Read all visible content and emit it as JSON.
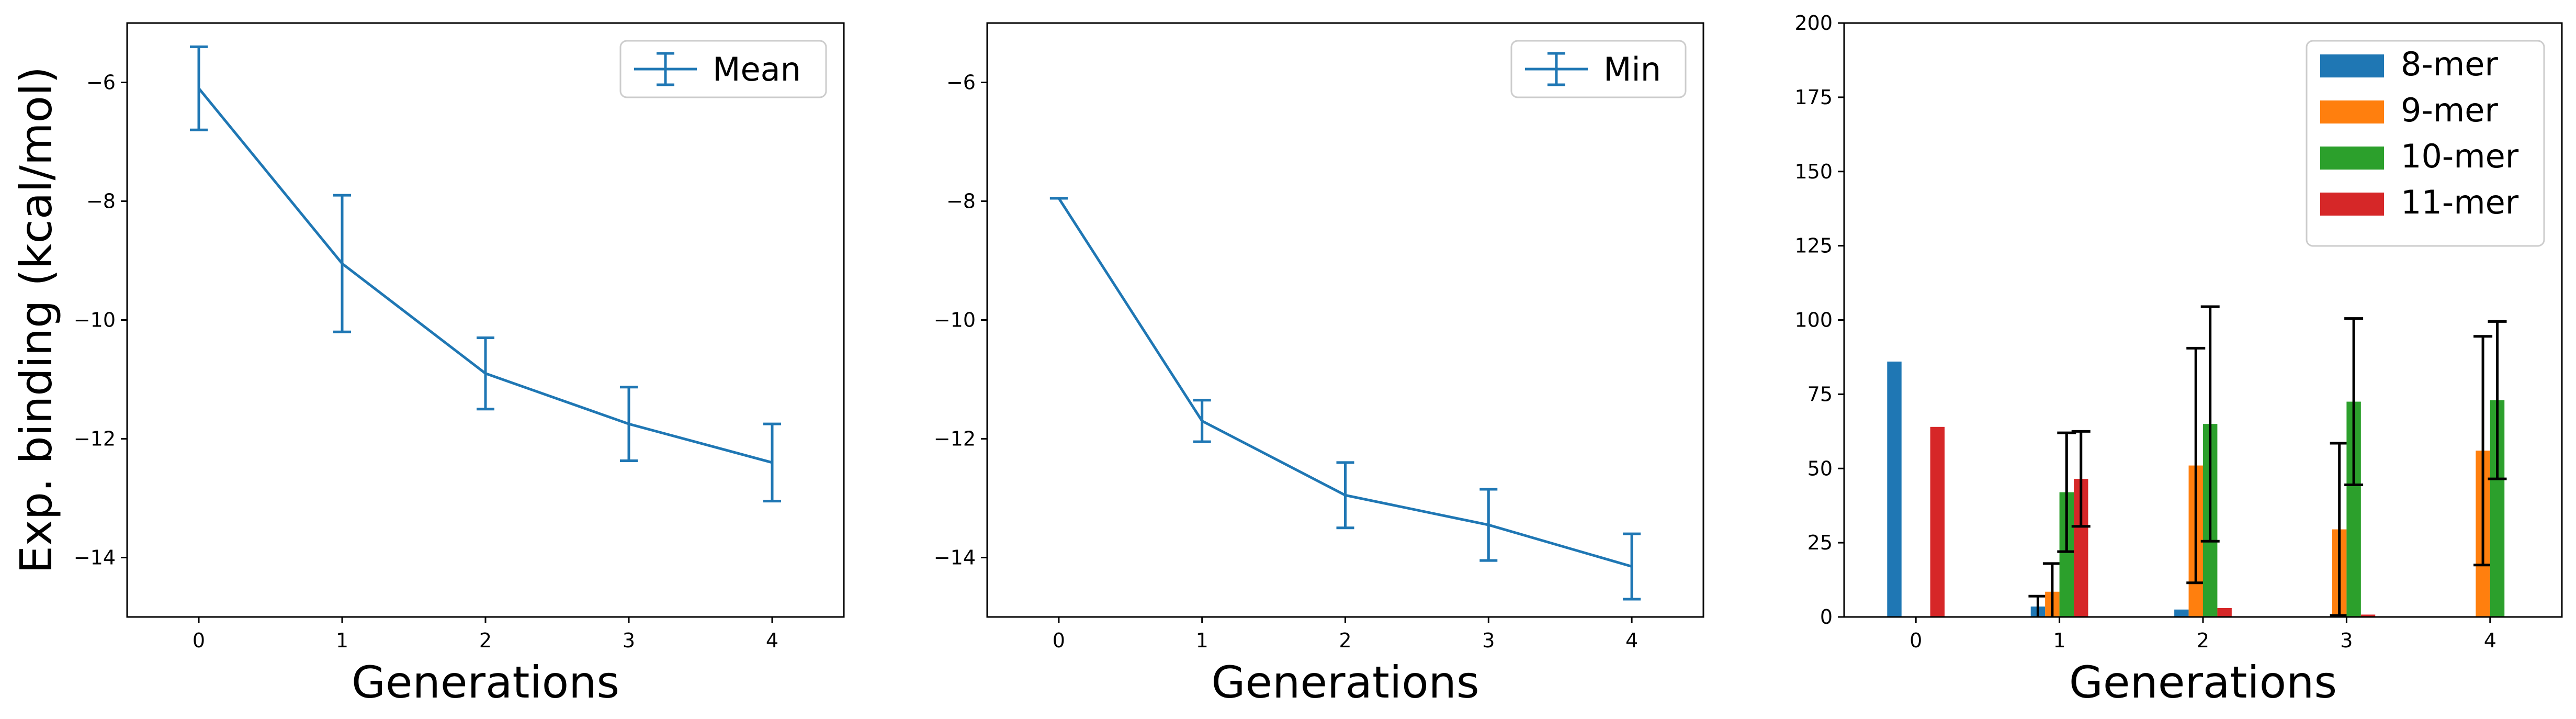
{
  "chart_data": [
    {
      "type": "line",
      "xlabel": "Generations",
      "ylabel": "Exp. binding (kcal/mol)",
      "xlim": [
        -0.5,
        4.5
      ],
      "ylim": [
        -15,
        -5
      ],
      "xticks": [
        0,
        1,
        2,
        3,
        4
      ],
      "yticks": [
        -14,
        -12,
        -10,
        -8,
        -6
      ],
      "legend": "upper-right",
      "series": [
        {
          "name": "Mean",
          "color": "#1f77b4",
          "x": [
            0,
            1,
            2,
            3,
            4
          ],
          "y": [
            -6.1,
            -9.05,
            -10.9,
            -11.75,
            -12.4
          ],
          "err": [
            0.7,
            1.15,
            0.6,
            0.62,
            0.65
          ]
        }
      ]
    },
    {
      "type": "line",
      "xlabel": "Generations",
      "ylabel": "",
      "xlim": [
        -0.5,
        4.5
      ],
      "ylim": [
        -15,
        -5
      ],
      "xticks": [
        0,
        1,
        2,
        3,
        4
      ],
      "yticks": [
        -14,
        -12,
        -10,
        -8,
        -6
      ],
      "legend": "upper-right",
      "series": [
        {
          "name": "Min",
          "color": "#1f77b4",
          "x": [
            0,
            1,
            2,
            3,
            4
          ],
          "y": [
            -7.95,
            -11.7,
            -12.95,
            -13.45,
            -14.15
          ],
          "err": [
            0.0,
            0.35,
            0.55,
            0.6,
            0.55
          ]
        }
      ]
    },
    {
      "type": "bar",
      "xlabel": "Generations",
      "ylabel": "",
      "xlim": [
        -0.5,
        4.5
      ],
      "ylim": [
        0,
        200
      ],
      "xticks": [
        0,
        1,
        2,
        3,
        4
      ],
      "yticks": [
        0,
        25,
        50,
        75,
        100,
        125,
        150,
        175,
        200
      ],
      "legend": "upper-right",
      "categories": [
        0,
        1,
        2,
        3,
        4
      ],
      "series": [
        {
          "name": "8-mer",
          "color": "#1f77b4",
          "values": [
            86,
            3.5,
            2.5,
            0,
            0
          ],
          "err": [
            0,
            3.5,
            0,
            0,
            0
          ]
        },
        {
          "name": "9-mer",
          "color": "#ff7f0e",
          "values": [
            0,
            8.5,
            51,
            29.5,
            56
          ],
          "err": [
            0,
            9.5,
            39.5,
            29,
            38.5
          ]
        },
        {
          "name": "10-mer",
          "color": "#2ca02c",
          "values": [
            0,
            42,
            65,
            72.5,
            73
          ],
          "err": [
            0,
            20,
            39.5,
            28,
            26.5
          ]
        },
        {
          "name": "11-mer",
          "color": "#d62728",
          "values": [
            64,
            46.5,
            3,
            0.8,
            0
          ],
          "err": [
            0,
            16,
            0,
            0,
            0
          ]
        }
      ]
    }
  ]
}
